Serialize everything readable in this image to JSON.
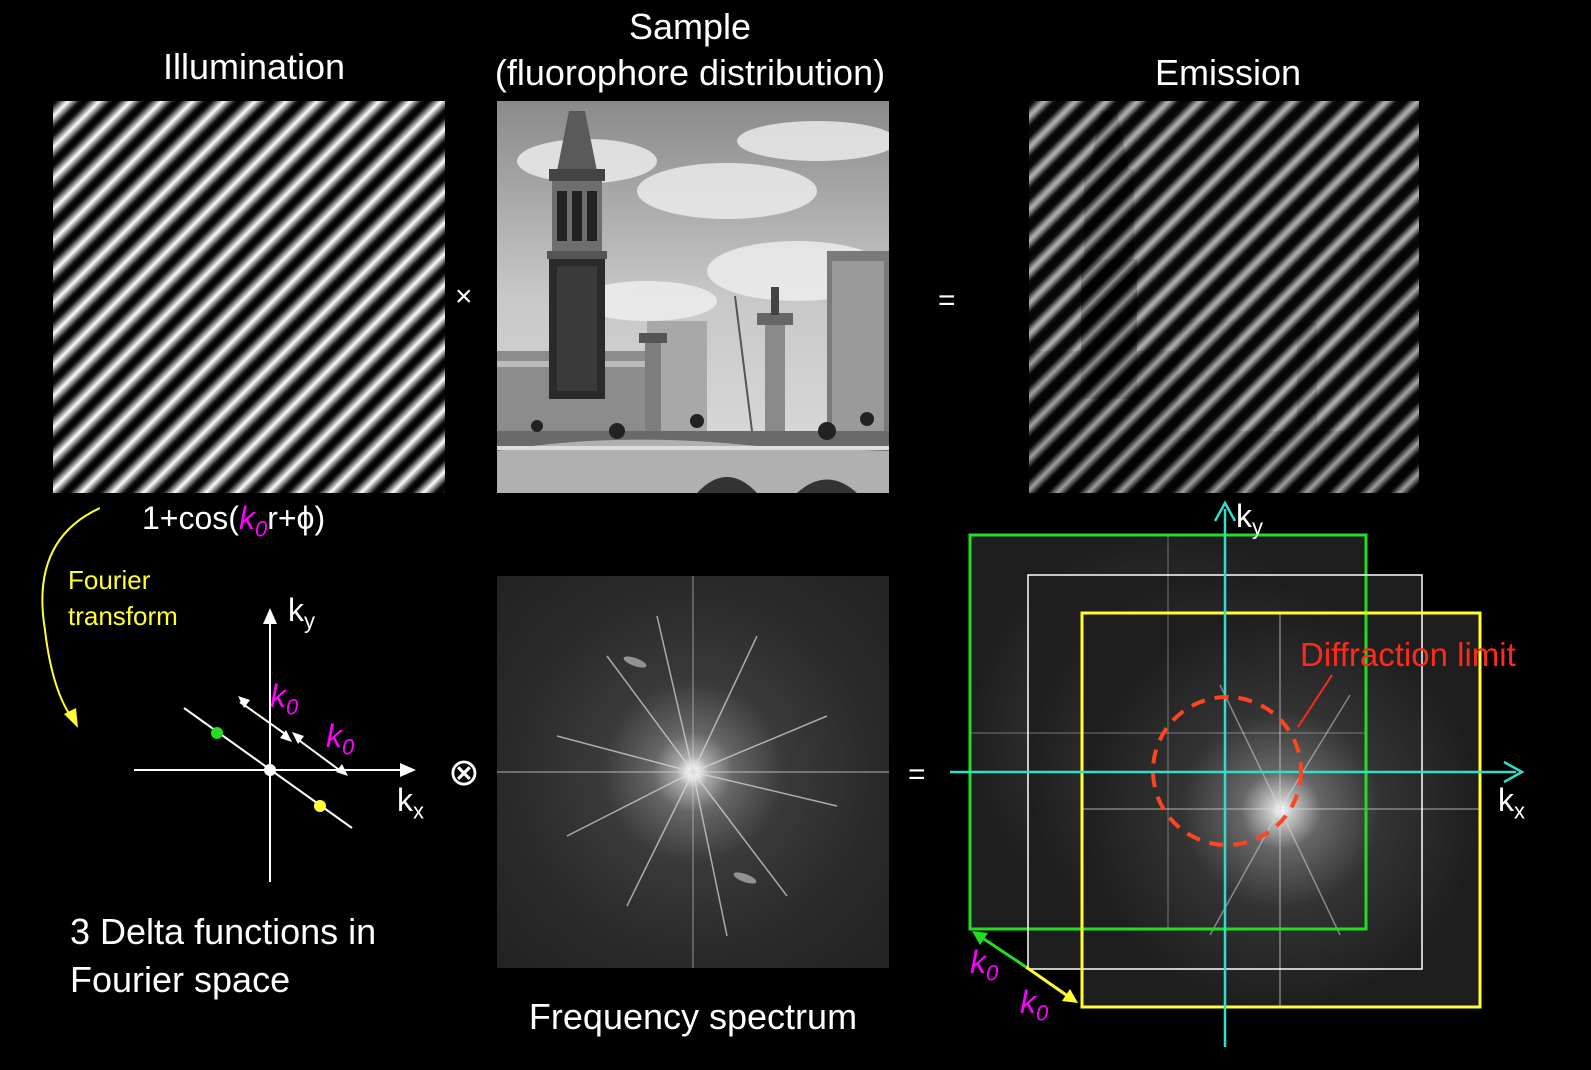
{
  "titles": {
    "illumination": "Illumination",
    "sample_line1": "Sample",
    "sample_line2": "(fluorophore distribution)",
    "emission": "Emission"
  },
  "operators": {
    "times": "×",
    "equals_top": "=",
    "convolve": "⊗",
    "equals_bottom": "="
  },
  "formula": {
    "prefix": "1+cos(",
    "k": "k",
    "k_sub": "0",
    "suffix": "r+ϕ)"
  },
  "fourier_transform": {
    "line1": "Fourier",
    "line2": "transform"
  },
  "delta_caption": {
    "line1": "3 Delta functions in",
    "line2": "Fourier space"
  },
  "frequency_caption": "Frequency spectrum",
  "axes": {
    "k": "k",
    "x_sub": "x",
    "y_sub": "y",
    "k0": "k",
    "k0_sub": "0"
  },
  "diffraction_label": "Diffraction limit",
  "colors": {
    "background": "#000000",
    "magenta": "#ff00ff",
    "yellow": "#ffff33",
    "green": "#22dd22",
    "cyan": "#33ddcc",
    "red": "#ff2a1a",
    "orange_red": "#ff4422"
  }
}
